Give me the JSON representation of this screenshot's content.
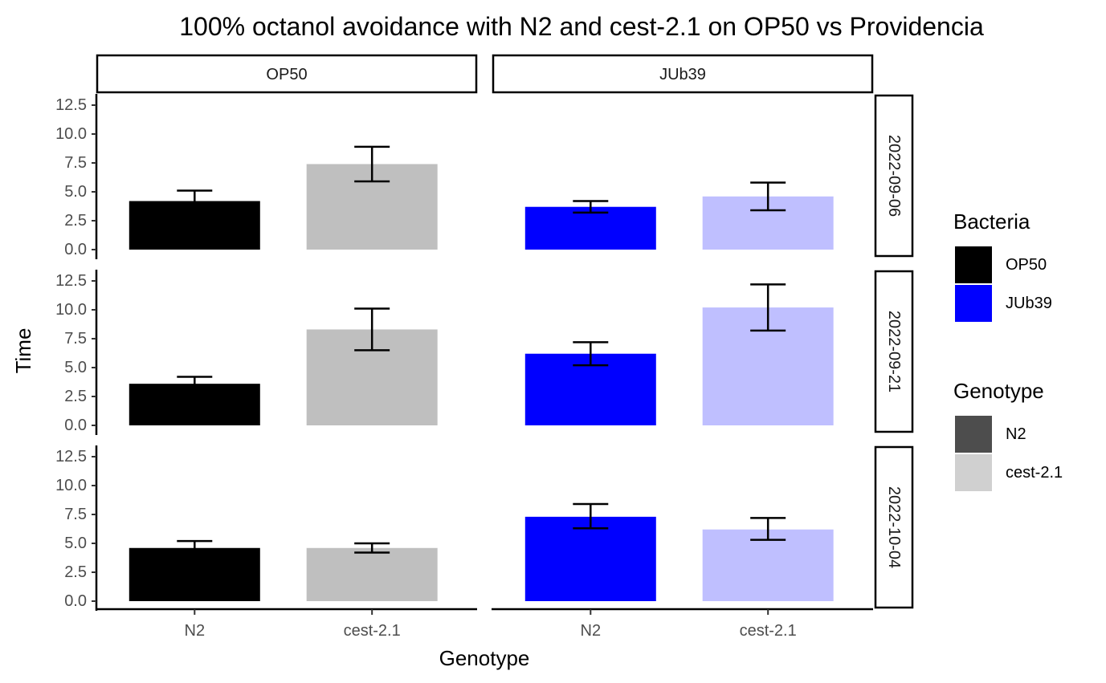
{
  "chart_data": {
    "type": "bar",
    "title": "100% octanol avoidance with N2 and cest-2.1 on OP50 vs Providencia",
    "xlabel": "Genotype",
    "ylabel": "Time",
    "ylim": [
      0,
      12.5
    ],
    "yticks": [
      "0.0",
      "2.5",
      "5.0",
      "7.5",
      "10.0",
      "12.5"
    ],
    "categories": [
      "N2",
      "cest-2.1"
    ],
    "facet_cols": [
      "OP50",
      "JUb39"
    ],
    "facet_rows": [
      "2022-09-06",
      "2022-09-21",
      "2022-10-04"
    ],
    "grid": false,
    "legend_position": "right",
    "panels": [
      {
        "row": "2022-09-06",
        "col": "OP50",
        "bars": [
          {
            "genotype": "N2",
            "value": 4.2,
            "err_low": 3.5,
            "err_high": 5.1
          },
          {
            "genotype": "cest-2.1",
            "value": 7.4,
            "err_low": 5.9,
            "err_high": 8.9
          }
        ]
      },
      {
        "row": "2022-09-06",
        "col": "JUb39",
        "bars": [
          {
            "genotype": "N2",
            "value": 3.7,
            "err_low": 3.2,
            "err_high": 4.2
          },
          {
            "genotype": "cest-2.1",
            "value": 4.6,
            "err_low": 3.4,
            "err_high": 5.8
          }
        ]
      },
      {
        "row": "2022-09-21",
        "col": "OP50",
        "bars": [
          {
            "genotype": "N2",
            "value": 3.6,
            "err_low": 3.3,
            "err_high": 4.2
          },
          {
            "genotype": "cest-2.1",
            "value": 8.3,
            "err_low": 6.5,
            "err_high": 10.1
          }
        ]
      },
      {
        "row": "2022-09-21",
        "col": "JUb39",
        "bars": [
          {
            "genotype": "N2",
            "value": 6.2,
            "err_low": 5.2,
            "err_high": 7.2
          },
          {
            "genotype": "cest-2.1",
            "value": 10.2,
            "err_low": 8.2,
            "err_high": 12.2
          }
        ]
      },
      {
        "row": "2022-10-04",
        "col": "OP50",
        "bars": [
          {
            "genotype": "N2",
            "value": 4.6,
            "err_low": 4.0,
            "err_high": 5.2
          },
          {
            "genotype": "cest-2.1",
            "value": 4.6,
            "err_low": 4.2,
            "err_high": 5.0
          }
        ]
      },
      {
        "row": "2022-10-04",
        "col": "JUb39",
        "bars": [
          {
            "genotype": "N2",
            "value": 7.3,
            "err_low": 6.3,
            "err_high": 8.4
          },
          {
            "genotype": "cest-2.1",
            "value": 6.2,
            "err_low": 5.3,
            "err_high": 7.2
          }
        ]
      }
    ],
    "colors": {
      "OP50|N2": "#000000",
      "OP50|cest-2.1": "#bfbfbf",
      "JUb39|N2": "#0000ff",
      "JUb39|cest-2.1": "#bfbfff"
    },
    "legends": [
      {
        "title": "Bacteria",
        "items": [
          {
            "label": "OP50",
            "color": "#000000"
          },
          {
            "label": "JUb39",
            "color": "#0000ff"
          }
        ]
      },
      {
        "title": "Genotype",
        "items": [
          {
            "label": "N2",
            "color": "#4d4d4d"
          },
          {
            "label": "cest-2.1",
            "color": "#d0d0d0"
          }
        ]
      }
    ]
  }
}
